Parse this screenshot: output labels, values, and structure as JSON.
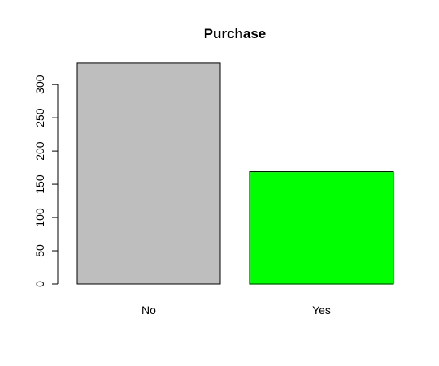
{
  "chart_data": {
    "type": "bar",
    "title": "Purchase",
    "xlabel": "",
    "ylabel": "",
    "categories": [
      "No",
      "Yes"
    ],
    "values": [
      332,
      169
    ],
    "colors": [
      "#bebebe",
      "#00ff00"
    ],
    "yticks": [
      0,
      50,
      100,
      150,
      200,
      250,
      300
    ],
    "ylim": [
      0,
      332
    ],
    "grid": false,
    "legend": "none"
  }
}
